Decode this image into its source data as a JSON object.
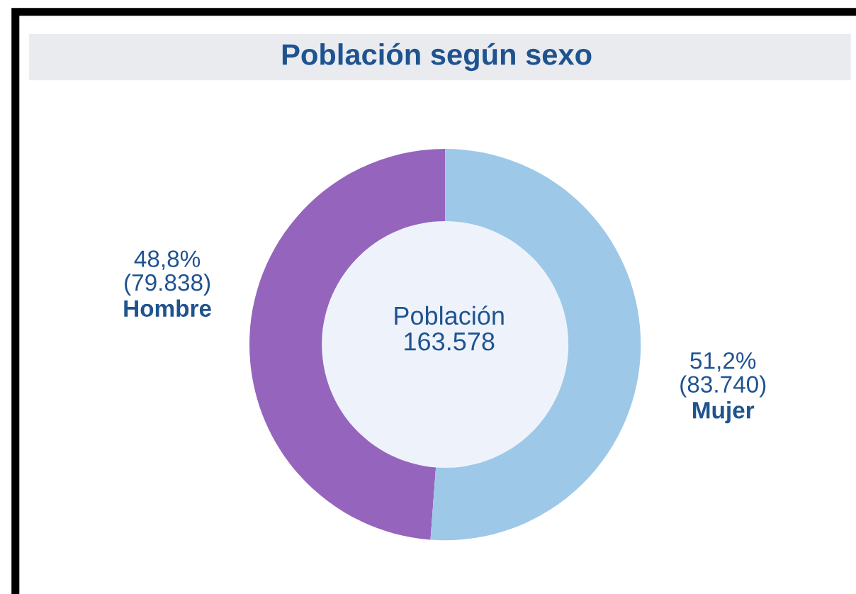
{
  "chart_data": {
    "type": "donut",
    "title": "Población según sexo",
    "categories": [
      "Hombre",
      "Mujer"
    ],
    "values": [
      79838,
      83740
    ],
    "value_labels": [
      "48,8%\n(79.838)",
      "51,2%\n(83.740)"
    ],
    "colors": [
      "#9565bd",
      "#9dc8e8"
    ],
    "annotations": [
      "Población\n163.578"
    ],
    "legend": false
  }
}
